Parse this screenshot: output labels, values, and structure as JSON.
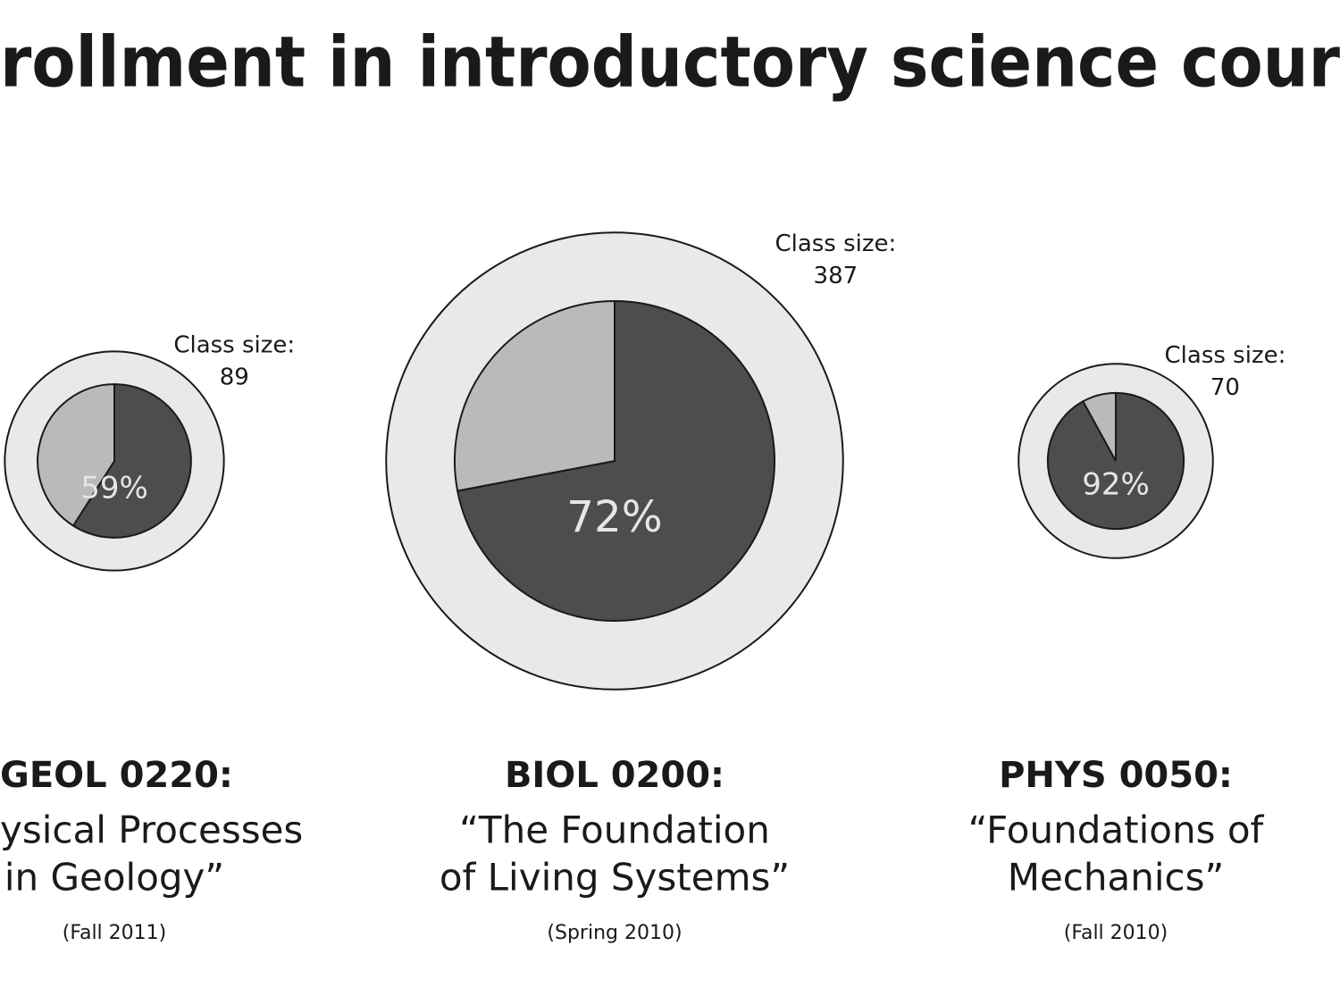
{
  "header": {
    "title": "rollment in introductory science cour"
  },
  "chart_data": [
    {
      "type": "pie",
      "title": "GEOL 0220:",
      "subtitle": [
        "ysical Processes",
        "in Geology”"
      ],
      "note": "(Fall 2011)",
      "size_label": "Class size:",
      "size": 89,
      "values": [
        59,
        41
      ],
      "value_labels": [
        "59%",
        null
      ],
      "colors": [
        "#4d4d4d",
        "#b9babc"
      ],
      "ring_color": "#e8e9e9"
    },
    {
      "type": "pie",
      "title": "BIOL 0200:",
      "subtitle": [
        "“The Foundation",
        "of Living Systems”"
      ],
      "note": "(Spring 2010)",
      "size_label": "Class size:",
      "size": 387,
      "values": [
        72,
        28
      ],
      "value_labels": [
        "72%",
        null
      ],
      "colors": [
        "#4d4d4d",
        "#b9babc"
      ],
      "ring_color": "#e8e9e9"
    },
    {
      "type": "pie",
      "title": "PHYS 0050:",
      "subtitle": [
        "“Foundations of",
        "Mechanics”"
      ],
      "note": "(Fall 2010)",
      "size_label": "Class size:",
      "size": 70,
      "values": [
        92,
        8
      ],
      "value_labels": [
        "92%",
        null
      ],
      "colors": [
        "#4d4d4d",
        "#b9babc"
      ],
      "ring_color": "#e8e9e9"
    }
  ]
}
